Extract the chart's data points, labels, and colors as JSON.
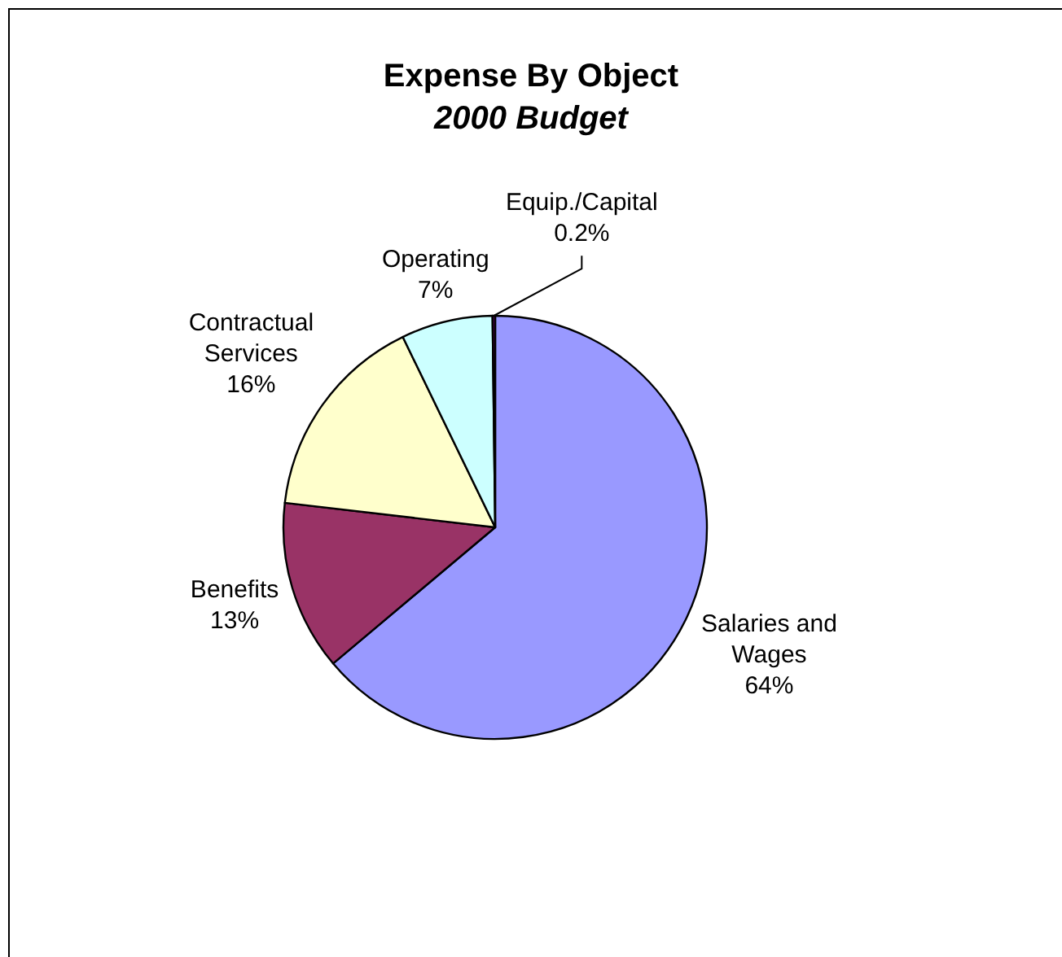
{
  "chart_data": {
    "type": "pie",
    "title": "Expense By Object",
    "subtitle": "2000 Budget",
    "categories": [
      "Salaries and Wages",
      "Benefits",
      "Contractual Services",
      "Operating",
      "Equip./Capital"
    ],
    "values": [
      64,
      13,
      16,
      7,
      0.2
    ],
    "colors": [
      "#9999ff",
      "#993366",
      "#ffffcc",
      "#ccffff",
      "#660066"
    ],
    "value_labels": [
      "64%",
      "13%",
      "16%",
      "7%",
      "0.2%"
    ]
  }
}
